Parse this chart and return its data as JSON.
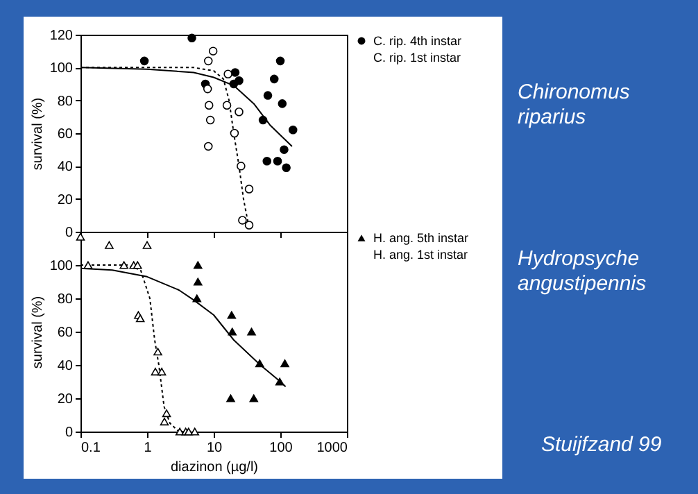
{
  "chart_data": [
    {
      "type": "scatter",
      "annotations": [
        "Chironomus riparius"
      ],
      "ylabel": "survival (%)",
      "log": "x",
      "xlim": [
        0.1,
        1000
      ],
      "xticks": [
        0.1,
        1,
        10,
        100,
        1000
      ],
      "ylim": [
        0,
        120
      ],
      "yticks": [
        0,
        20,
        40,
        60,
        80,
        100,
        120
      ],
      "tick_labels": "y",
      "legend": "right",
      "series": [
        {
          "type": "line",
          "color": "#000000",
          "line_style": "solid",
          "x": [
            0.1,
            1,
            5,
            10,
            20,
            40,
            70,
            150
          ],
          "values": [
            100,
            99,
            97,
            94,
            89,
            78,
            65,
            52
          ]
        },
        {
          "type": "line",
          "color": "#000000",
          "line_style": "dotted",
          "x": [
            0.1,
            5,
            10,
            14,
            17,
            20,
            24,
            28,
            33
          ],
          "values": [
            100,
            100,
            98,
            93,
            80,
            60,
            40,
            20,
            5
          ]
        },
        {
          "name": "C. rip. 4th instar",
          "marker": "circle",
          "color": "#000000",
          "x": [
            0.91,
            4.7,
            7.5,
            21,
            20,
            24,
            65,
            81,
            100,
            107,
            55,
            155,
            63,
            91,
            114,
            123
          ],
          "values": [
            104,
            118,
            90,
            97,
            90,
            92,
            83,
            93,
            104,
            78,
            68,
            62,
            43,
            43,
            50,
            39
          ]
        },
        {
          "name": "C. rip. 1st instar",
          "marker": "circle",
          "color": "#ffffff",
          "x": [
            8.3,
            9.8,
            8.1,
            8.5,
            8.9,
            8.3,
            16.4,
            15.8,
            24,
            20.5,
            25.7,
            34,
            27,
            34
          ],
          "values": [
            104,
            110,
            87,
            77,
            68,
            52,
            96,
            77,
            73,
            60,
            40,
            26,
            7,
            4
          ]
        }
      ]
    },
    {
      "type": "scatter",
      "xlabel": "diazinon (µg/l)",
      "ylabel": "survival (%)",
      "log": "x",
      "xlim": [
        0.1,
        1000
      ],
      "xticks": [
        0.1,
        1,
        10,
        100,
        1000
      ],
      "ylim": [
        0,
        120
      ],
      "yticks": [
        0,
        20,
        40,
        60,
        80,
        100
      ],
      "legend": "right",
      "annotations": [
        "Hydropsyche angustipennis",
        "Stuijfzand 99"
      ],
      "series": [
        {
          "type": "line",
          "color": "#000000",
          "line_style": "solid",
          "x": [
            0.1,
            0.3,
            1,
            3,
            5,
            10,
            20,
            50,
            100,
            120
          ],
          "values": [
            98,
            97,
            93,
            85,
            79,
            70,
            55,
            40,
            30,
            27
          ]
        },
        {
          "type": "line",
          "color": "#000000",
          "line_style": "dotted",
          "x": [
            0.1,
            0.5,
            0.8,
            1.1,
            1.3,
            1.5,
            1.8,
            2.2,
            3,
            5
          ],
          "values": [
            100,
            100,
            97,
            80,
            55,
            40,
            15,
            5,
            0,
            0
          ]
        },
        {
          "name": "H. ang. 5th instar",
          "marker": "triangle",
          "color": "#000000",
          "x": [
            5.8,
            5.8,
            5.6,
            18.6,
            19,
            37,
            49,
            117,
            98,
            18,
            40
          ],
          "values": [
            100,
            90,
            80,
            70,
            60,
            60,
            41,
            41,
            30,
            20,
            20
          ]
        },
        {
          "name": "H. ang. 1st instar",
          "marker": "triangle",
          "color": "#ffffff",
          "x": [
            0.1,
            0.27,
            1,
            0.13,
            0.45,
            0.63,
            0.72,
            0.74,
            0.79,
            1.45,
            1.33,
            1.66,
            1.96,
            1.82,
            3.1,
            3.8,
            4.2,
            5.2
          ],
          "values": [
            117,
            112,
            112,
            100,
            100,
            100,
            100,
            70,
            68,
            48,
            36,
            36,
            11,
            6,
            0,
            0,
            0,
            0
          ]
        }
      ]
    }
  ]
}
